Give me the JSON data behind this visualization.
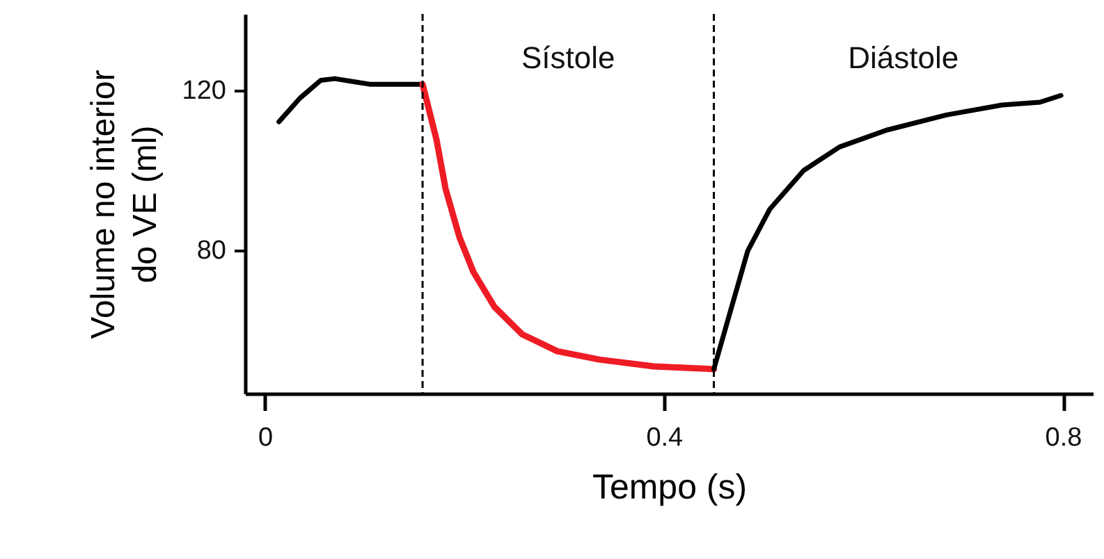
{
  "chart_data": {
    "type": "line",
    "xlabel": "Tempo (s)",
    "ylabel": "Volume no interior\ndo VE (ml)",
    "xlim": [
      -0.02,
      0.83
    ],
    "ylim": [
      44,
      139
    ],
    "xticks": [
      0,
      0.4,
      0.8
    ],
    "yticks": [
      80,
      120
    ],
    "grid": false,
    "line_style": "solid",
    "series": [
      {
        "color": "#000000",
        "x": [
          0.014,
          0.035,
          0.056,
          0.07,
          0.09,
          0.105,
          0.158
        ],
        "values": [
          112,
          117.9,
          122.4,
          122.8,
          122,
          121.4,
          121.4
        ]
      },
      {
        "color": "#ee1c24",
        "x": [
          0.158,
          0.172,
          0.181,
          0.195,
          0.209,
          0.23,
          0.258,
          0.293,
          0.335,
          0.39,
          0.45
        ],
        "values": [
          121.4,
          107.5,
          95.3,
          83.1,
          74.4,
          65.7,
          58.8,
          54.6,
          52.5,
          50.8,
          50.1
        ]
      },
      {
        "color": "#000000",
        "x": [
          0.45,
          0.464,
          0.484,
          0.506,
          0.54,
          0.576,
          0.623,
          0.683,
          0.739,
          0.777,
          0.798
        ],
        "values": [
          50.1,
          62.3,
          79.7,
          90.1,
          99.8,
          105.7,
          109.9,
          113.7,
          116.2,
          116.9,
          118.6
        ]
      }
    ],
    "ref_lines": [
      {
        "axis": "x",
        "value": 0.158,
        "color": "#000000",
        "line_style": "dashed"
      },
      {
        "axis": "x",
        "value": 0.45,
        "color": "#000000",
        "line_style": "dashed"
      }
    ],
    "annotations": [
      "Sístole",
      "Diástole"
    ]
  }
}
